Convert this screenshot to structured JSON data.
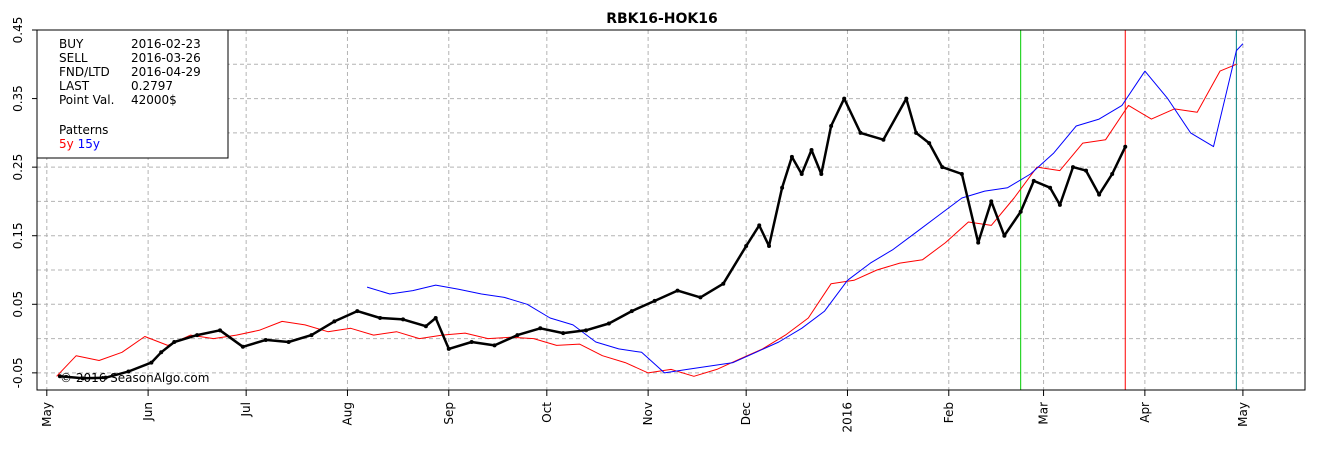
{
  "chart_data": {
    "type": "line",
    "title": "RBK16-HOK16",
    "xlabel": "",
    "ylabel": "",
    "ylim": [
      -0.075,
      0.45
    ],
    "y_ticks": [
      -0.05,
      0.05,
      0.15,
      0.25,
      0.35,
      0.45
    ],
    "y_tick_labels": [
      "-0.05",
      "0.05",
      "0.15",
      "0.25",
      "0.35",
      "0.45"
    ],
    "grid": true,
    "x_range": [
      "2015-04-28",
      "2016-05-20"
    ],
    "x_ticks": [
      "2015-05-01",
      "2015-06-01",
      "2015-07-01",
      "2015-08-01",
      "2015-09-01",
      "2015-10-01",
      "2015-11-01",
      "2015-12-01",
      "2016-01-01",
      "2016-02-01",
      "2016-03-01",
      "2016-04-01",
      "2016-05-01"
    ],
    "x_tick_labels": [
      "May",
      "Jun",
      "Jul",
      "Aug",
      "Sep",
      "Oct",
      "Nov",
      "Dec",
      "2016",
      "Feb",
      "Mar",
      "Apr",
      "May"
    ],
    "info_box": {
      "rows": [
        {
          "label": "BUY",
          "value": "2016-02-23",
          "color": "#00cc00"
        },
        {
          "label": "SELL",
          "value": "2016-03-26",
          "color": "#ff0000"
        },
        {
          "label": "FND/LTD",
          "value": "2016-04-29",
          "color": "#008080"
        },
        {
          "label": "LAST",
          "value": "0.2797",
          "color": "#000000"
        },
        {
          "label": "Point Val.",
          "value": "42000$",
          "color": "#000000"
        }
      ],
      "patterns_label": "Patterns",
      "patterns": [
        {
          "label": "5y",
          "color": "#ff0000"
        },
        {
          "label": "15y",
          "color": "#0000ff"
        }
      ]
    },
    "vertical_lines": [
      {
        "date": "2016-02-23",
        "color": "#00cc00"
      },
      {
        "date": "2016-03-26",
        "color": "#ff0000"
      },
      {
        "date": "2016-04-29",
        "color": "#008080"
      }
    ],
    "copyright": "© 2016 SeasonAlgo.com",
    "series": [
      {
        "name": "RBK16-HOK16",
        "color": "#000000",
        "markers": true,
        "points": [
          [
            "2015-05-05",
            -0.055
          ],
          [
            "2015-05-12",
            -0.058
          ],
          [
            "2015-05-19",
            -0.057
          ],
          [
            "2015-05-26",
            -0.048
          ],
          [
            "2015-06-02",
            -0.035
          ],
          [
            "2015-06-05",
            -0.02
          ],
          [
            "2015-06-09",
            -0.005
          ],
          [
            "2015-06-16",
            0.005
          ],
          [
            "2015-06-23",
            0.012
          ],
          [
            "2015-06-30",
            -0.012
          ],
          [
            "2015-07-07",
            -0.002
          ],
          [
            "2015-07-14",
            -0.005
          ],
          [
            "2015-07-21",
            0.005
          ],
          [
            "2015-07-28",
            0.025
          ],
          [
            "2015-08-04",
            0.04
          ],
          [
            "2015-08-11",
            0.03
          ],
          [
            "2015-08-18",
            0.028
          ],
          [
            "2015-08-25",
            0.018
          ],
          [
            "2015-08-28",
            0.03
          ],
          [
            "2015-09-01",
            -0.015
          ],
          [
            "2015-09-08",
            -0.005
          ],
          [
            "2015-09-15",
            -0.01
          ],
          [
            "2015-09-22",
            0.005
          ],
          [
            "2015-09-29",
            0.015
          ],
          [
            "2015-10-06",
            0.008
          ],
          [
            "2015-10-13",
            0.012
          ],
          [
            "2015-10-20",
            0.022
          ],
          [
            "2015-10-27",
            0.04
          ],
          [
            "2015-11-03",
            0.055
          ],
          [
            "2015-11-10",
            0.07
          ],
          [
            "2015-11-17",
            0.06
          ],
          [
            "2015-11-24",
            0.08
          ],
          [
            "2015-12-01",
            0.135
          ],
          [
            "2015-12-05",
            0.165
          ],
          [
            "2015-12-08",
            0.135
          ],
          [
            "2015-12-12",
            0.22
          ],
          [
            "2015-12-15",
            0.265
          ],
          [
            "2015-12-18",
            0.24
          ],
          [
            "2015-12-21",
            0.275
          ],
          [
            "2015-12-24",
            0.24
          ],
          [
            "2015-12-27",
            0.31
          ],
          [
            "2015-12-31",
            0.35
          ],
          [
            "2016-01-05",
            0.3
          ],
          [
            "2016-01-12",
            0.29
          ],
          [
            "2016-01-19",
            0.35
          ],
          [
            "2016-01-22",
            0.3
          ],
          [
            "2016-01-26",
            0.285
          ],
          [
            "2016-01-30",
            0.25
          ],
          [
            "2016-02-05",
            0.24
          ],
          [
            "2016-02-10",
            0.14
          ],
          [
            "2016-02-14",
            0.2
          ],
          [
            "2016-02-18",
            0.15
          ],
          [
            "2016-02-23",
            0.185
          ],
          [
            "2016-02-27",
            0.23
          ],
          [
            "2016-03-03",
            0.22
          ],
          [
            "2016-03-06",
            0.195
          ],
          [
            "2016-03-10",
            0.25
          ],
          [
            "2016-03-14",
            0.245
          ],
          [
            "2016-03-18",
            0.21
          ],
          [
            "2016-03-22",
            0.24
          ],
          [
            "2016-03-26",
            0.2797
          ]
        ]
      },
      {
        "name": "5y",
        "color": "#ff0000",
        "markers": false,
        "points": [
          [
            "2015-05-04",
            -0.055
          ],
          [
            "2015-05-10",
            -0.025
          ],
          [
            "2015-05-17",
            -0.032
          ],
          [
            "2015-05-24",
            -0.02
          ],
          [
            "2015-05-31",
            0.003
          ],
          [
            "2015-06-07",
            -0.01
          ],
          [
            "2015-06-14",
            0.005
          ],
          [
            "2015-06-21",
            0.0
          ],
          [
            "2015-06-28",
            0.005
          ],
          [
            "2015-07-05",
            0.012
          ],
          [
            "2015-07-12",
            0.025
          ],
          [
            "2015-07-19",
            0.02
          ],
          [
            "2015-07-26",
            0.01
          ],
          [
            "2015-08-02",
            0.015
          ],
          [
            "2015-08-09",
            0.005
          ],
          [
            "2015-08-16",
            0.01
          ],
          [
            "2015-08-23",
            0.0
          ],
          [
            "2015-08-30",
            0.005
          ],
          [
            "2015-09-06",
            0.008
          ],
          [
            "2015-09-13",
            0.0
          ],
          [
            "2015-09-20",
            0.002
          ],
          [
            "2015-09-27",
            0.0
          ],
          [
            "2015-10-04",
            -0.01
          ],
          [
            "2015-10-11",
            -0.008
          ],
          [
            "2015-10-18",
            -0.025
          ],
          [
            "2015-10-25",
            -0.035
          ],
          [
            "2015-11-01",
            -0.05
          ],
          [
            "2015-11-08",
            -0.045
          ],
          [
            "2015-11-15",
            -0.055
          ],
          [
            "2015-11-22",
            -0.045
          ],
          [
            "2015-11-29",
            -0.03
          ],
          [
            "2015-12-06",
            -0.015
          ],
          [
            "2015-12-13",
            0.005
          ],
          [
            "2015-12-20",
            0.03
          ],
          [
            "2015-12-27",
            0.08
          ],
          [
            "2016-01-03",
            0.085
          ],
          [
            "2016-01-10",
            0.1
          ],
          [
            "2016-01-17",
            0.11
          ],
          [
            "2016-01-24",
            0.115
          ],
          [
            "2016-01-31",
            0.14
          ],
          [
            "2016-02-07",
            0.17
          ],
          [
            "2016-02-14",
            0.165
          ],
          [
            "2016-02-21",
            0.205
          ],
          [
            "2016-02-28",
            0.25
          ],
          [
            "2016-03-06",
            0.245
          ],
          [
            "2016-03-13",
            0.285
          ],
          [
            "2016-03-20",
            0.29
          ],
          [
            "2016-03-27",
            0.34
          ],
          [
            "2016-04-03",
            0.32
          ],
          [
            "2016-04-10",
            0.335
          ],
          [
            "2016-04-17",
            0.33
          ],
          [
            "2016-04-24",
            0.39
          ],
          [
            "2016-04-29",
            0.4
          ]
        ]
      },
      {
        "name": "15y",
        "color": "#0000ff",
        "markers": false,
        "points": [
          [
            "2015-08-07",
            0.075
          ],
          [
            "2015-08-14",
            0.065
          ],
          [
            "2015-08-21",
            0.07
          ],
          [
            "2015-08-28",
            0.078
          ],
          [
            "2015-09-04",
            0.072
          ],
          [
            "2015-09-11",
            0.065
          ],
          [
            "2015-09-18",
            0.06
          ],
          [
            "2015-09-25",
            0.05
          ],
          [
            "2015-10-02",
            0.03
          ],
          [
            "2015-10-09",
            0.02
          ],
          [
            "2015-10-16",
            -0.005
          ],
          [
            "2015-10-23",
            -0.015
          ],
          [
            "2015-10-30",
            -0.02
          ],
          [
            "2015-11-06",
            -0.05
          ],
          [
            "2015-11-13",
            -0.045
          ],
          [
            "2015-11-20",
            -0.04
          ],
          [
            "2015-11-27",
            -0.035
          ],
          [
            "2015-12-04",
            -0.02
          ],
          [
            "2015-12-11",
            -0.005
          ],
          [
            "2015-12-18",
            0.015
          ],
          [
            "2015-12-25",
            0.04
          ],
          [
            "2016-01-01",
            0.085
          ],
          [
            "2016-01-08",
            0.11
          ],
          [
            "2016-01-15",
            0.13
          ],
          [
            "2016-01-22",
            0.155
          ],
          [
            "2016-01-29",
            0.18
          ],
          [
            "2016-02-05",
            0.205
          ],
          [
            "2016-02-12",
            0.215
          ],
          [
            "2016-02-19",
            0.22
          ],
          [
            "2016-02-26",
            0.24
          ],
          [
            "2016-03-04",
            0.27
          ],
          [
            "2016-03-11",
            0.31
          ],
          [
            "2016-03-18",
            0.32
          ],
          [
            "2016-03-25",
            0.34
          ],
          [
            "2016-04-01",
            0.39
          ],
          [
            "2016-04-08",
            0.35
          ],
          [
            "2016-04-15",
            0.3
          ],
          [
            "2016-04-22",
            0.28
          ],
          [
            "2016-04-26",
            0.36
          ],
          [
            "2016-04-29",
            0.42
          ],
          [
            "2016-05-01",
            0.43
          ]
        ]
      }
    ]
  }
}
